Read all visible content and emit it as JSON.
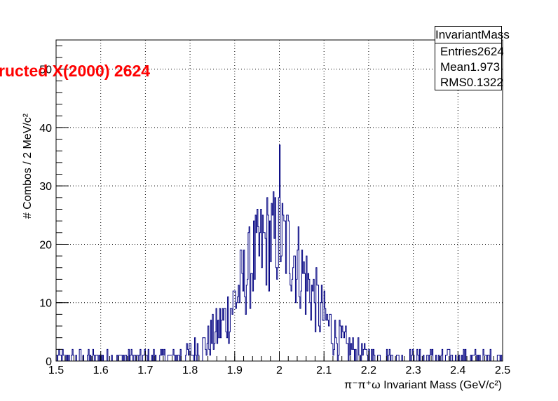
{
  "overlay_title": "ructed X(2000) 2624",
  "stats": {
    "title": "InvariantMass",
    "rows": [
      {
        "label": "Entries",
        "value": "2624"
      },
      {
        "label": "Mean",
        "value": "1.973"
      },
      {
        "label": "RMS",
        "value": "0.1322"
      }
    ]
  },
  "chart_data": {
    "type": "histogram",
    "xlim": [
      1.5,
      2.5
    ],
    "ylim": [
      0,
      55
    ],
    "bin_width": 0.002,
    "x_ticks": [
      "1.5",
      "1.6",
      "1.7",
      "1.8",
      "1.9",
      "2",
      "2.1",
      "2.2",
      "2.3",
      "2.4",
      "2.5"
    ],
    "y_ticks": [
      "0",
      "10",
      "20",
      "30",
      "40",
      "50"
    ],
    "grid": true,
    "line_color": "#000080",
    "overlay_color": "#ff0000",
    "xlabel": "π⁻π⁺ω Invariant Mass (GeV/c²)",
    "ylabel": "# Combos / 2 MeV/c²"
  }
}
